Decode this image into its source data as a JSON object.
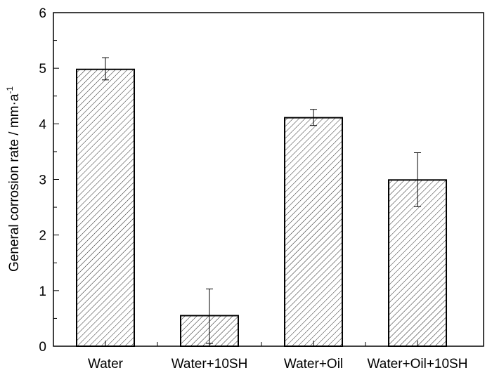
{
  "chart_data": {
    "type": "bar",
    "title": "",
    "xlabel": "",
    "ylabel": "General corrosion rate / mm·a",
    "ylabel_superscript": "-1",
    "categories": [
      "Water",
      "Water+10SH",
      "Water+Oil",
      "Water+Oil+10SH"
    ],
    "values": [
      4.98,
      0.55,
      4.11,
      2.99
    ],
    "error_upper": [
      5.19,
      1.03,
      4.26,
      3.48
    ],
    "error_lower": [
      4.79,
      0.05,
      3.97,
      2.51
    ],
    "ylim": [
      0,
      6
    ],
    "yticks": [
      "0",
      "1",
      "2",
      "3",
      "4",
      "5",
      "6"
    ],
    "fill_pattern": "diagonal-hatch",
    "grid": false
  }
}
